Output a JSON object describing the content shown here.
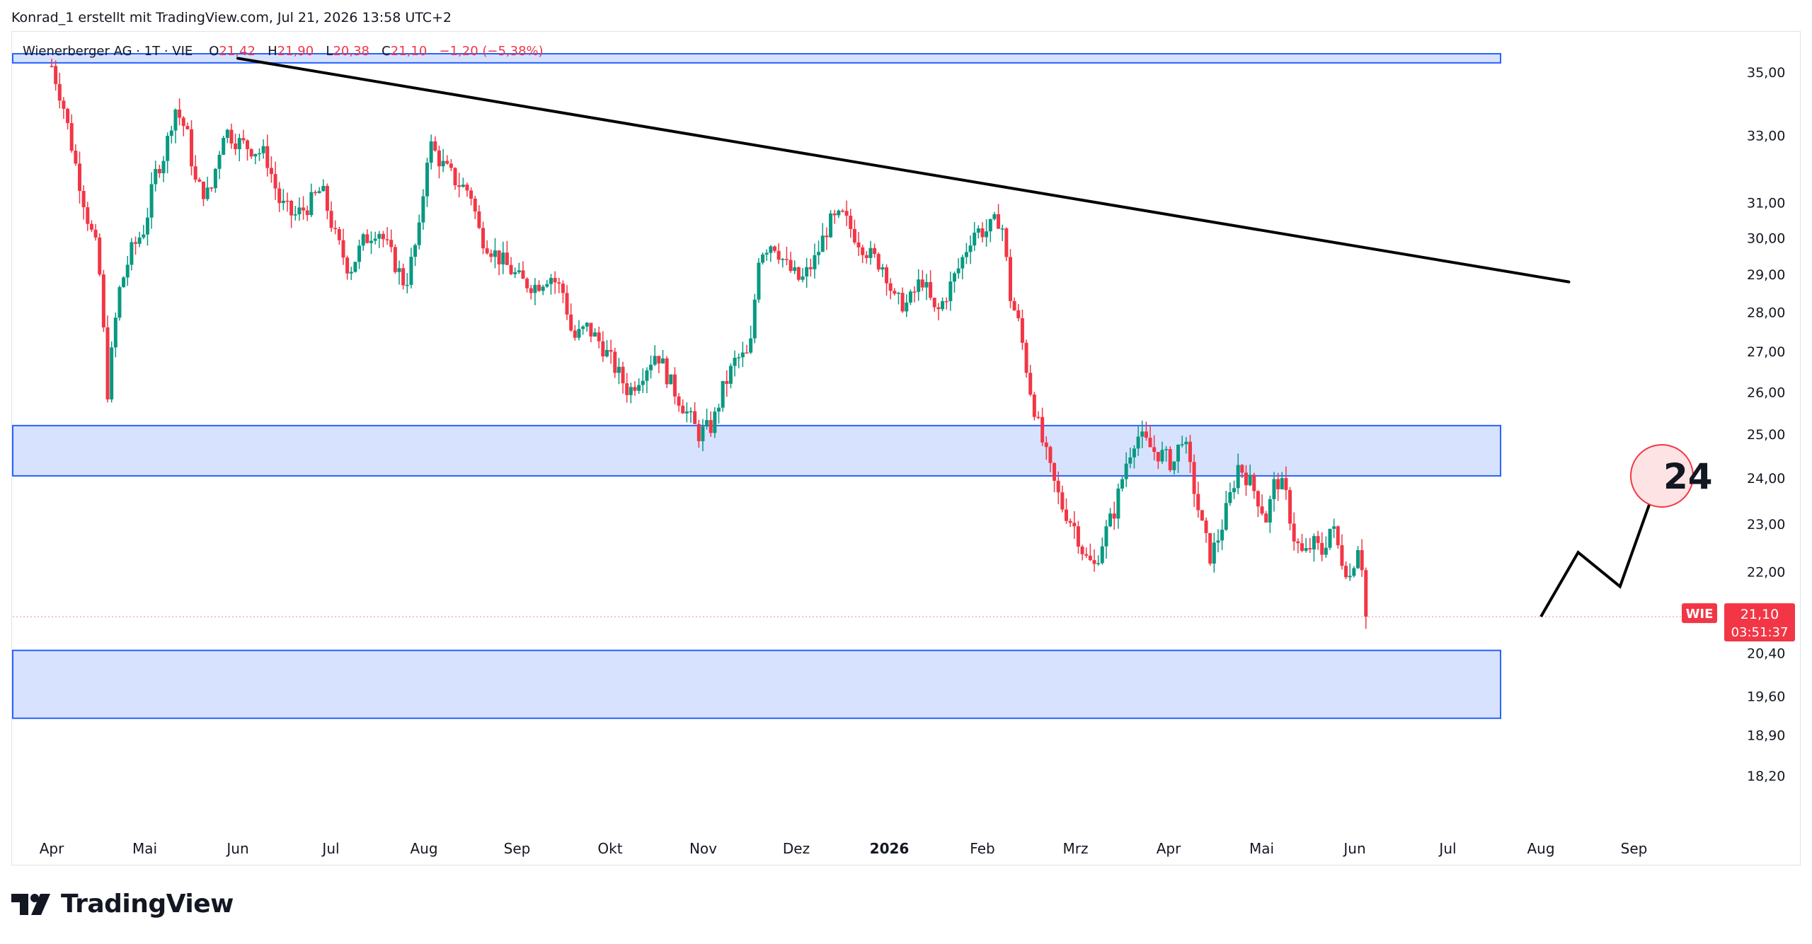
{
  "attribution": "Konrad_1 erstellt mit TradingView.com, Jul 21, 2026 13:58 UTC+2",
  "symbol_line": {
    "name": "Wienerberger AG · 1T · VIE",
    "o_label": "O",
    "o_value": "21,42",
    "h_label": "H",
    "h_value": "21,90",
    "l_label": "L",
    "l_value": "20,38",
    "c_label": "C",
    "c_value": "21,10",
    "change": "−1,20 (−5,38%)"
  },
  "price_tag": {
    "ticker": "WIE",
    "price": "21,10",
    "countdown": "03:51:37"
  },
  "annotation_label": "24",
  "logo_text": "TradingView",
  "colors": {
    "up": "#089981",
    "down": "#f23645",
    "zone_fill": "#d3dfff",
    "zone_border": "#2962ff",
    "text": "#131722"
  },
  "chart_data": {
    "type": "candlestick",
    "y_scale": "log",
    "ylim": [
      17.8,
      35.6
    ],
    "y_ticks": [
      "35,00",
      "33,00",
      "31,00",
      "30,00",
      "29,00",
      "28,00",
      "27,00",
      "26,00",
      "25,00",
      "24,00",
      "23,00",
      "22,00",
      "20,40",
      "19,60",
      "18,90",
      "18,20"
    ],
    "y_tick_values": [
      35.0,
      33.0,
      31.0,
      30.0,
      29.0,
      28.0,
      27.0,
      26.0,
      25.0,
      24.0,
      23.0,
      22.0,
      20.4,
      19.6,
      18.9,
      18.2
    ],
    "x_ticks": [
      "Apr",
      "Mai",
      "Jun",
      "Jul",
      "Aug",
      "Sep",
      "Okt",
      "Nov",
      "Dez",
      "2026",
      "Feb",
      "Mrz",
      "Apr",
      "Mai",
      "Jun",
      "Jul",
      "Aug",
      "Sep"
    ],
    "x_tick_months": [
      0,
      1,
      2,
      3,
      4,
      5,
      6,
      7,
      8,
      9,
      10,
      11,
      12,
      13,
      14,
      15,
      16,
      17
    ],
    "x_tick_bold": [
      false,
      false,
      false,
      false,
      false,
      false,
      false,
      false,
      false,
      true,
      false,
      false,
      false,
      false,
      false,
      false,
      false,
      false
    ],
    "last_price": 21.1,
    "zones": [
      {
        "from": 24.05,
        "to": 25.2
      },
      {
        "from": 19.2,
        "to": 20.45
      },
      {
        "from": 35.3,
        "to": 35.6
      }
    ],
    "trendline": {
      "start": {
        "month": 2.0,
        "price": 35.45
      },
      "end": {
        "month": 16.3,
        "price": 28.8
      }
    },
    "projection": [
      {
        "month": 16.0,
        "price": 21.1
      },
      {
        "month": 16.4,
        "price": 22.4
      },
      {
        "month": 16.85,
        "price": 21.7
      },
      {
        "month": 17.3,
        "price": 24.2
      }
    ],
    "target_circle": {
      "month": 17.3,
      "price": 24.05
    },
    "price_path": [
      [
        0.0,
        35.2
      ],
      [
        0.12,
        34.0
      ],
      [
        0.25,
        32.2
      ],
      [
        0.4,
        30.4
      ],
      [
        0.5,
        29.5
      ],
      [
        0.6,
        26.0
      ],
      [
        0.72,
        28.5
      ],
      [
        0.85,
        29.6
      ],
      [
        1.0,
        30.3
      ],
      [
        1.12,
        31.9
      ],
      [
        1.22,
        32.5
      ],
      [
        1.32,
        33.9
      ],
      [
        1.45,
        33.1
      ],
      [
        1.55,
        31.5
      ],
      [
        1.7,
        31.2
      ],
      [
        1.85,
        33.2
      ],
      [
        2.0,
        32.8
      ],
      [
        2.15,
        32.6
      ],
      [
        2.3,
        32.4
      ],
      [
        2.45,
        31.0
      ],
      [
        2.6,
        30.6
      ],
      [
        2.75,
        30.9
      ],
      [
        2.9,
        31.4
      ],
      [
        3.05,
        30.0
      ],
      [
        3.2,
        29.1
      ],
      [
        3.35,
        29.9
      ],
      [
        3.5,
        30.3
      ],
      [
        3.65,
        29.5
      ],
      [
        3.8,
        28.7
      ],
      [
        3.95,
        30.2
      ],
      [
        4.05,
        32.8
      ],
      [
        4.2,
        32.1
      ],
      [
        4.35,
        31.6
      ],
      [
        4.5,
        31.3
      ],
      [
        4.6,
        30.1
      ],
      [
        4.75,
        29.6
      ],
      [
        4.9,
        29.2
      ],
      [
        5.05,
        28.8
      ],
      [
        5.2,
        28.7
      ],
      [
        5.35,
        29.0
      ],
      [
        5.5,
        28.5
      ],
      [
        5.6,
        27.3
      ],
      [
        5.75,
        27.6
      ],
      [
        5.9,
        27.2
      ],
      [
        6.05,
        26.6
      ],
      [
        6.2,
        26.0
      ],
      [
        6.35,
        26.5
      ],
      [
        6.5,
        27.0
      ],
      [
        6.65,
        26.2
      ],
      [
        6.8,
        25.6
      ],
      [
        6.95,
        25.0
      ],
      [
        7.1,
        25.2
      ],
      [
        7.2,
        26.0
      ],
      [
        7.35,
        26.8
      ],
      [
        7.5,
        26.9
      ],
      [
        7.6,
        29.6
      ],
      [
        7.75,
        29.9
      ],
      [
        7.9,
        29.2
      ],
      [
        8.05,
        28.8
      ],
      [
        8.2,
        29.4
      ],
      [
        8.35,
        30.4
      ],
      [
        8.5,
        30.6
      ],
      [
        8.65,
        30.0
      ],
      [
        8.8,
        29.5
      ],
      [
        8.95,
        29.2
      ],
      [
        9.05,
        28.3
      ],
      [
        9.2,
        28.2
      ],
      [
        9.35,
        28.9
      ],
      [
        9.5,
        27.9
      ],
      [
        9.6,
        28.4
      ],
      [
        9.75,
        29.2
      ],
      [
        9.9,
        30.2
      ],
      [
        10.05,
        30.2
      ],
      [
        10.2,
        30.6
      ],
      [
        10.3,
        28.4
      ],
      [
        10.4,
        27.6
      ],
      [
        10.5,
        26.2
      ],
      [
        10.62,
        25.0
      ],
      [
        10.75,
        24.0
      ],
      [
        10.85,
        23.4
      ],
      [
        11.0,
        22.9
      ],
      [
        11.1,
        22.3
      ],
      [
        11.2,
        22.1
      ],
      [
        11.3,
        22.7
      ],
      [
        11.42,
        23.3
      ],
      [
        11.55,
        24.4
      ],
      [
        11.65,
        25.0
      ],
      [
        11.75,
        24.8
      ],
      [
        11.85,
        24.6
      ],
      [
        11.95,
        24.5
      ],
      [
        12.05,
        24.3
      ],
      [
        12.15,
        25.0
      ],
      [
        12.25,
        24.0
      ],
      [
        12.35,
        23.0
      ],
      [
        12.45,
        22.3
      ],
      [
        12.55,
        22.8
      ],
      [
        12.65,
        23.5
      ],
      [
        12.75,
        24.3
      ],
      [
        12.85,
        24.0
      ],
      [
        12.95,
        23.6
      ],
      [
        13.05,
        23.1
      ],
      [
        13.15,
        24.0
      ],
      [
        13.25,
        23.7
      ],
      [
        13.35,
        22.7
      ],
      [
        13.45,
        22.3
      ],
      [
        13.55,
        22.6
      ],
      [
        13.65,
        22.4
      ],
      [
        13.75,
        23.0
      ],
      [
        13.85,
        22.3
      ],
      [
        13.95,
        21.9
      ],
      [
        14.05,
        22.7
      ],
      [
        14.12,
        21.3
      ]
    ]
  }
}
